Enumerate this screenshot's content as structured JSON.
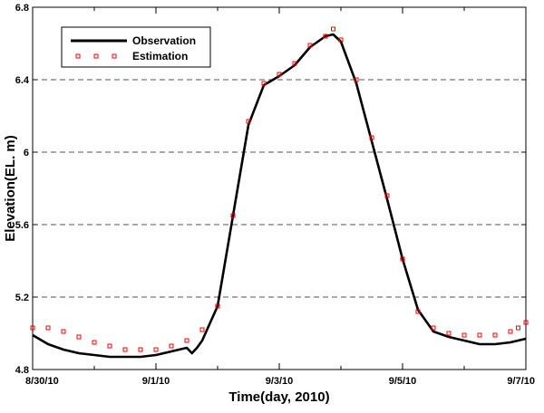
{
  "chart_data": {
    "type": "line",
    "xlabel": "Time(day, 2010)",
    "ylabel": "Elevation(EL. m)",
    "xlim": [
      "2010-08-30",
      "2010-09-07"
    ],
    "ylim": [
      4.8,
      6.8
    ],
    "x_ticks": [
      "8/30/10",
      "9/1/10",
      "9/3/10",
      "9/5/10",
      "9/7/10"
    ],
    "y_ticks": [
      "4.8",
      "5.2",
      "5.6",
      "6",
      "6.4",
      "6.8"
    ],
    "grid": "horizontal dashed",
    "legend_position": "top-left",
    "colors": {
      "observation": "#000000",
      "estimation": "#ff0000"
    },
    "series": [
      {
        "name": "Observation",
        "style": "line",
        "x": [
          "2010-08-30 00:00",
          "2010-08-30 06:00",
          "2010-08-30 12:00",
          "2010-08-30 18:00",
          "2010-08-31 00:00",
          "2010-08-31 06:00",
          "2010-08-31 12:00",
          "2010-08-31 18:00",
          "2010-09-01 00:00",
          "2010-09-01 06:00",
          "2010-09-01 12:00",
          "2010-09-01 14:00",
          "2010-09-01 16:00",
          "2010-09-01 18:00",
          "2010-09-02 00:00",
          "2010-09-02 06:00",
          "2010-09-02 12:00",
          "2010-09-02 18:00",
          "2010-09-03 00:00",
          "2010-09-03 06:00",
          "2010-09-03 12:00",
          "2010-09-03 18:00",
          "2010-09-03 21:00",
          "2010-09-04 00:00",
          "2010-09-04 06:00",
          "2010-09-04 12:00",
          "2010-09-04 18:00",
          "2010-09-05 00:00",
          "2010-09-05 06:00",
          "2010-09-05 12:00",
          "2010-09-05 18:00",
          "2010-09-06 00:00",
          "2010-09-06 06:00",
          "2010-09-06 12:00",
          "2010-09-06 18:00",
          "2010-09-07 00:00"
        ],
        "y": [
          4.99,
          4.94,
          4.91,
          4.89,
          4.88,
          4.87,
          4.87,
          4.87,
          4.88,
          4.9,
          4.92,
          4.89,
          4.92,
          4.96,
          5.15,
          5.65,
          6.15,
          6.37,
          6.42,
          6.48,
          6.58,
          6.64,
          6.65,
          6.61,
          6.38,
          6.06,
          5.74,
          5.41,
          5.13,
          5.01,
          4.98,
          4.96,
          4.94,
          4.94,
          4.95,
          4.97
        ]
      },
      {
        "name": "Estimation",
        "style": "markers",
        "x": [
          "2010-08-30 00:00",
          "2010-08-30 06:00",
          "2010-08-30 12:00",
          "2010-08-30 18:00",
          "2010-08-31 00:00",
          "2010-08-31 06:00",
          "2010-08-31 12:00",
          "2010-08-31 18:00",
          "2010-09-01 00:00",
          "2010-09-01 06:00",
          "2010-09-01 12:00",
          "2010-09-01 18:00",
          "2010-09-02 00:00",
          "2010-09-02 06:00",
          "2010-09-02 12:00",
          "2010-09-02 18:00",
          "2010-09-03 00:00",
          "2010-09-03 06:00",
          "2010-09-03 12:00",
          "2010-09-03 18:00",
          "2010-09-03 21:00",
          "2010-09-04 00:00",
          "2010-09-04 06:00",
          "2010-09-04 12:00",
          "2010-09-04 18:00",
          "2010-09-05 00:00",
          "2010-09-05 06:00",
          "2010-09-05 12:00",
          "2010-09-05 18:00",
          "2010-09-06 00:00",
          "2010-09-06 06:00",
          "2010-09-06 12:00",
          "2010-09-06 18:00",
          "2010-09-06 21:00",
          "2010-09-07 00:00"
        ],
        "y": [
          5.03,
          5.03,
          5.01,
          4.98,
          4.95,
          4.93,
          4.91,
          4.91,
          4.91,
          4.93,
          4.96,
          5.02,
          5.15,
          5.65,
          6.17,
          6.38,
          6.43,
          6.49,
          6.59,
          6.64,
          6.68,
          6.62,
          6.4,
          6.08,
          5.76,
          5.41,
          5.12,
          5.03,
          5.0,
          4.99,
          4.99,
          4.99,
          5.01,
          5.03,
          5.06
        ]
      }
    ]
  }
}
